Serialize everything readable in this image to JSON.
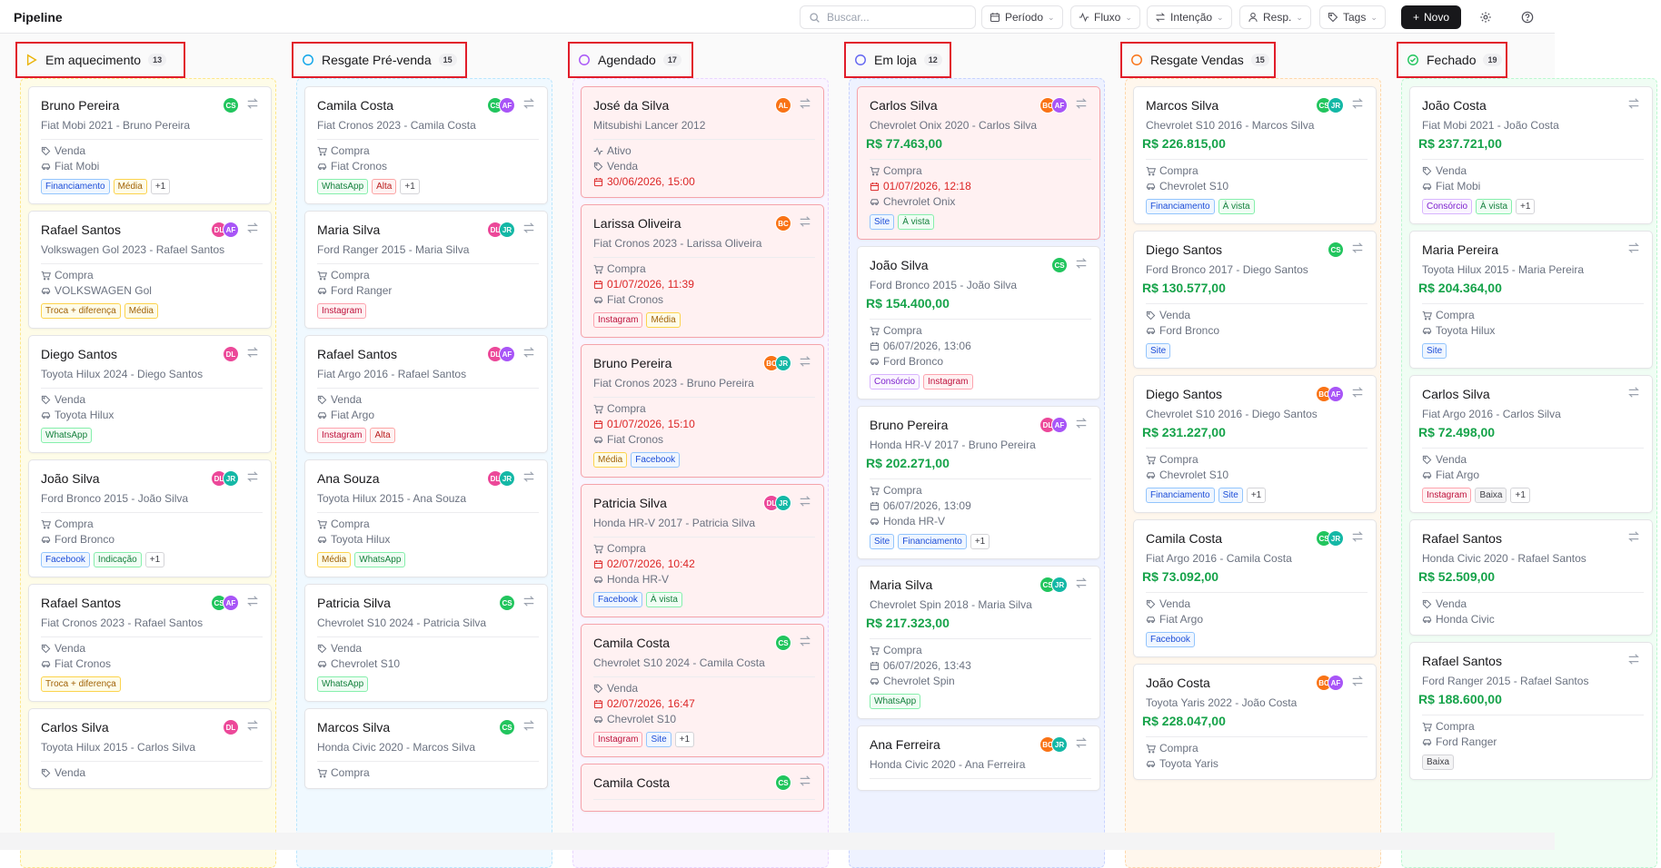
{
  "app": {
    "title": "Pipeline"
  },
  "toolbar": {
    "search_placeholder": "Buscar...",
    "periodo": "Período",
    "fluxo": "Fluxo",
    "intencao": "Intenção",
    "resp": "Resp.",
    "tags": "Tags",
    "novo": "Novo"
  },
  "colors": {
    "accent": "#18181b",
    "price": "#16a34a",
    "highlight": "#e11d2a"
  },
  "columns": [
    {
      "title": "Em aquecimento",
      "count": "13",
      "icon": "triangle-play-icon",
      "color": "#eab308",
      "bg": "#fefce8",
      "border": "#fde68a",
      "cards": [
        {
          "name": "Bruno Pereira",
          "subtitle": "Fiat Mobi 2021 - Bruno Pereira",
          "avatars": [
            "CS"
          ],
          "lines": [
            {
              "icon": "tag",
              "text": "Venda"
            },
            {
              "icon": "car",
              "text": "Fiat Mobi"
            }
          ],
          "tags": [
            "Financiamento",
            "Média",
            "+1"
          ]
        },
        {
          "name": "Rafael Santos",
          "subtitle": "Volkswagen Gol 2023 - Rafael Santos",
          "avatars": [
            "DL",
            "AF"
          ],
          "lines": [
            {
              "icon": "cart",
              "text": "Compra"
            },
            {
              "icon": "car",
              "text": "VOLKSWAGEN Gol"
            }
          ],
          "tags": [
            "Troca + diferença",
            "Média"
          ]
        },
        {
          "name": "Diego Santos",
          "subtitle": "Toyota Hilux 2024 - Diego Santos",
          "avatars": [
            "DL"
          ],
          "lines": [
            {
              "icon": "tag",
              "text": "Venda"
            },
            {
              "icon": "car",
              "text": "Toyota Hilux"
            }
          ],
          "tags": [
            "WhatsApp"
          ]
        },
        {
          "name": "João Silva",
          "subtitle": "Ford Bronco 2015 - João Silva",
          "avatars": [
            "DL",
            "JR"
          ],
          "lines": [
            {
              "icon": "cart",
              "text": "Compra"
            },
            {
              "icon": "car",
              "text": "Ford Bronco"
            }
          ],
          "tags": [
            "Facebook",
            "Indicação",
            "+1"
          ]
        },
        {
          "name": "Rafael Santos",
          "subtitle": "Fiat Cronos 2023 - Rafael Santos",
          "avatars": [
            "CS",
            "AF"
          ],
          "lines": [
            {
              "icon": "tag",
              "text": "Venda"
            },
            {
              "icon": "car",
              "text": "Fiat Cronos"
            }
          ],
          "tags": [
            "Troca + diferença"
          ]
        },
        {
          "name": "Carlos Silva",
          "subtitle": "Toyota Hilux 2015 - Carlos Silva",
          "avatars": [
            "DL"
          ],
          "lines": [
            {
              "icon": "tag",
              "text": "Venda"
            }
          ],
          "tags": []
        }
      ]
    },
    {
      "title": "Resgate Pré-venda",
      "count": "15",
      "icon": "circle-icon",
      "color": "#0ea5e9",
      "bg": "#f0f9ff",
      "border": "#bae6fd",
      "cards": [
        {
          "name": "Camila Costa",
          "subtitle": "Fiat Cronos 2023 - Camila Costa",
          "avatars": [
            "CS",
            "AF"
          ],
          "lines": [
            {
              "icon": "cart",
              "text": "Compra"
            },
            {
              "icon": "car",
              "text": "Fiat Cronos"
            }
          ],
          "tags": [
            "WhatsApp",
            "Alta",
            "+1"
          ]
        },
        {
          "name": "Maria Silva",
          "subtitle": "Ford Ranger 2015 - Maria Silva",
          "avatars": [
            "DL",
            "JR"
          ],
          "lines": [
            {
              "icon": "cart",
              "text": "Compra"
            },
            {
              "icon": "car",
              "text": "Ford Ranger"
            }
          ],
          "tags": [
            "Instagram"
          ]
        },
        {
          "name": "Rafael Santos",
          "subtitle": "Fiat Argo 2016 - Rafael Santos",
          "avatars": [
            "DL",
            "AF"
          ],
          "lines": [
            {
              "icon": "tag",
              "text": "Venda"
            },
            {
              "icon": "car",
              "text": "Fiat Argo"
            }
          ],
          "tags": [
            "Instagram",
            "Alta"
          ]
        },
        {
          "name": "Ana Souza",
          "subtitle": "Toyota Hilux 2015 - Ana Souza",
          "avatars": [
            "DL",
            "JR"
          ],
          "lines": [
            {
              "icon": "cart",
              "text": "Compra"
            },
            {
              "icon": "car",
              "text": "Toyota Hilux"
            }
          ],
          "tags": [
            "Média",
            "WhatsApp"
          ]
        },
        {
          "name": "Patricia Silva",
          "subtitle": "Chevrolet S10 2024 - Patricia Silva",
          "avatars": [
            "CS"
          ],
          "lines": [
            {
              "icon": "tag",
              "text": "Venda"
            },
            {
              "icon": "car",
              "text": "Chevrolet S10"
            }
          ],
          "tags": [
            "WhatsApp"
          ]
        },
        {
          "name": "Marcos Silva",
          "subtitle": "Honda Civic 2020 - Marcos Silva",
          "avatars": [
            "CS"
          ],
          "lines": [
            {
              "icon": "cart",
              "text": "Compra"
            }
          ],
          "tags": []
        }
      ]
    },
    {
      "title": "Agendado",
      "count": "17",
      "icon": "circle-icon",
      "color": "#a855f7",
      "bg": "#faf5ff",
      "border": "#e9d5ff",
      "cards": [
        {
          "name": "José da Silva",
          "subtitle": "Mitsubishi Lancer 2012",
          "avatars": [
            "AL"
          ],
          "alert": true,
          "lines": [
            {
              "icon": "activity",
              "text": "Ativo"
            },
            {
              "icon": "tag",
              "text": "Venda"
            },
            {
              "icon": "calendar",
              "text": "30/06/2026, 15:00",
              "red": true
            }
          ],
          "tags": []
        },
        {
          "name": "Larissa Oliveira",
          "subtitle": "Fiat Cronos 2023 - Larissa Oliveira",
          "avatars": [
            "BC"
          ],
          "alert": true,
          "lines": [
            {
              "icon": "cart",
              "text": "Compra"
            },
            {
              "icon": "calendar",
              "text": "01/07/2026, 11:39",
              "red": true
            },
            {
              "icon": "car",
              "text": "Fiat Cronos"
            }
          ],
          "tags": [
            "Instagram",
            "Média"
          ]
        },
        {
          "name": "Bruno Pereira",
          "subtitle": "Fiat Cronos 2023 - Bruno Pereira",
          "avatars": [
            "BC",
            "JR"
          ],
          "alert": true,
          "lines": [
            {
              "icon": "cart",
              "text": "Compra"
            },
            {
              "icon": "calendar",
              "text": "01/07/2026, 15:10",
              "red": true
            },
            {
              "icon": "car",
              "text": "Fiat Cronos"
            }
          ],
          "tags": [
            "Média",
            "Facebook"
          ]
        },
        {
          "name": "Patricia Silva",
          "subtitle": "Honda HR-V 2017 - Patricia Silva",
          "avatars": [
            "DL",
            "JR"
          ],
          "alert": true,
          "lines": [
            {
              "icon": "cart",
              "text": "Compra"
            },
            {
              "icon": "calendar",
              "text": "02/07/2026, 10:42",
              "red": true
            },
            {
              "icon": "car",
              "text": "Honda HR-V"
            }
          ],
          "tags": [
            "Facebook",
            "À vista"
          ]
        },
        {
          "name": "Camila Costa",
          "subtitle": "Chevrolet S10 2024 - Camila Costa",
          "avatars": [
            "CS"
          ],
          "alert": true,
          "lines": [
            {
              "icon": "tag",
              "text": "Venda"
            },
            {
              "icon": "calendar",
              "text": "02/07/2026, 16:47",
              "red": true
            },
            {
              "icon": "car",
              "text": "Chevrolet S10"
            }
          ],
          "tags": [
            "Instagram",
            "Site",
            "+1"
          ]
        },
        {
          "name": "Camila Costa",
          "subtitle": "",
          "avatars": [
            "CS"
          ],
          "alert": true,
          "lines": [],
          "tags": []
        }
      ]
    },
    {
      "title": "Em loja",
      "count": "12",
      "icon": "circle-icon",
      "color": "#6366f1",
      "bg": "#eef2ff",
      "border": "#c7d2fe",
      "cards": [
        {
          "name": "Carlos Silva",
          "subtitle": "Chevrolet Onix 2020 - Carlos Silva",
          "price": "R$ 77.463,00",
          "avatars": [
            "BC",
            "AF"
          ],
          "alert": true,
          "lines": [
            {
              "icon": "cart",
              "text": "Compra"
            },
            {
              "icon": "calendar",
              "text": "01/07/2026, 12:18",
              "red": true
            },
            {
              "icon": "car",
              "text": "Chevrolet Onix"
            }
          ],
          "tags": [
            "Site",
            "À vista"
          ]
        },
        {
          "name": "João Silva",
          "subtitle": "Ford Bronco 2015 - João Silva",
          "price": "R$ 154.400,00",
          "avatars": [
            "CS"
          ],
          "lines": [
            {
              "icon": "cart",
              "text": "Compra"
            },
            {
              "icon": "calendar",
              "text": "06/07/2026, 13:06"
            },
            {
              "icon": "car",
              "text": "Ford Bronco"
            }
          ],
          "tags": [
            "Consórcio",
            "Instagram"
          ]
        },
        {
          "name": "Bruno Pereira",
          "subtitle": "Honda HR-V 2017 - Bruno Pereira",
          "price": "R$ 202.271,00",
          "avatars": [
            "DL",
            "AF"
          ],
          "lines": [
            {
              "icon": "cart",
              "text": "Compra"
            },
            {
              "icon": "calendar",
              "text": "06/07/2026, 13:09"
            },
            {
              "icon": "car",
              "text": "Honda HR-V"
            }
          ],
          "tags": [
            "Site",
            "Financiamento",
            "+1"
          ]
        },
        {
          "name": "Maria Silva",
          "subtitle": "Chevrolet Spin 2018 - Maria Silva",
          "price": "R$ 217.323,00",
          "avatars": [
            "CS",
            "JR"
          ],
          "lines": [
            {
              "icon": "cart",
              "text": "Compra"
            },
            {
              "icon": "calendar",
              "text": "06/07/2026, 13:43"
            },
            {
              "icon": "car",
              "text": "Chevrolet Spin"
            }
          ],
          "tags": [
            "WhatsApp"
          ]
        },
        {
          "name": "Ana Ferreira",
          "subtitle": "Honda Civic 2020 - Ana Ferreira",
          "avatars": [
            "BC",
            "JR"
          ],
          "lines": [],
          "tags": []
        }
      ]
    },
    {
      "title": "Resgate Vendas",
      "count": "15",
      "icon": "circle-icon",
      "color": "#f97316",
      "bg": "#fff7ed",
      "border": "#fed7aa",
      "cards": [
        {
          "name": "Marcos Silva",
          "subtitle": "Chevrolet S10 2016 - Marcos Silva",
          "price": "R$ 226.815,00",
          "avatars": [
            "CS",
            "JR"
          ],
          "lines": [
            {
              "icon": "cart",
              "text": "Compra"
            },
            {
              "icon": "car",
              "text": "Chevrolet S10"
            }
          ],
          "tags": [
            "Financiamento",
            "À vista"
          ]
        },
        {
          "name": "Diego Santos",
          "subtitle": "Ford Bronco 2017 - Diego Santos",
          "price": "R$ 130.577,00",
          "avatars": [
            "CS"
          ],
          "lines": [
            {
              "icon": "tag",
              "text": "Venda"
            },
            {
              "icon": "car",
              "text": "Ford Bronco"
            }
          ],
          "tags": [
            "Site"
          ]
        },
        {
          "name": "Diego Santos",
          "subtitle": "Chevrolet S10 2016 - Diego Santos",
          "price": "R$ 231.227,00",
          "avatars": [
            "BC",
            "AF"
          ],
          "lines": [
            {
              "icon": "cart",
              "text": "Compra"
            },
            {
              "icon": "car",
              "text": "Chevrolet S10"
            }
          ],
          "tags": [
            "Financiamento",
            "Site",
            "+1"
          ]
        },
        {
          "name": "Camila Costa",
          "subtitle": "Fiat Argo 2016 - Camila Costa",
          "price": "R$ 73.092,00",
          "avatars": [
            "CS",
            "JR"
          ],
          "lines": [
            {
              "icon": "tag",
              "text": "Venda"
            },
            {
              "icon": "car",
              "text": "Fiat Argo"
            }
          ],
          "tags": [
            "Facebook"
          ]
        },
        {
          "name": "João Costa",
          "subtitle": "Toyota Yaris 2022 - João Costa",
          "price": "R$ 228.047,00",
          "avatars": [
            "BC",
            "AF"
          ],
          "lines": [
            {
              "icon": "cart",
              "text": "Compra"
            },
            {
              "icon": "car",
              "text": "Toyota Yaris"
            }
          ],
          "tags": []
        }
      ]
    },
    {
      "title": "Fechado",
      "count": "19",
      "icon": "check-circle-icon",
      "color": "#22c55e",
      "bg": "#f0fdf4",
      "border": "#bbf7d0",
      "cards": [
        {
          "name": "João Costa",
          "subtitle": "Fiat Mobi 2021 - João Costa",
          "price": "R$ 237.721,00",
          "avatars": [],
          "lines": [
            {
              "icon": "tag",
              "text": "Venda"
            },
            {
              "icon": "car",
              "text": "Fiat Mobi"
            }
          ],
          "tags": [
            "Consórcio",
            "À vista",
            "+1"
          ]
        },
        {
          "name": "Maria Pereira",
          "subtitle": "Toyota Hilux 2015 - Maria Pereira",
          "price": "R$ 204.364,00",
          "avatars": [],
          "lines": [
            {
              "icon": "cart",
              "text": "Compra"
            },
            {
              "icon": "car",
              "text": "Toyota Hilux"
            }
          ],
          "tags": [
            "Site"
          ]
        },
        {
          "name": "Carlos Silva",
          "subtitle": "Fiat Argo 2016 - Carlos Silva",
          "price": "R$ 72.498,00",
          "avatars": [],
          "lines": [
            {
              "icon": "tag",
              "text": "Venda"
            },
            {
              "icon": "car",
              "text": "Fiat Argo"
            }
          ],
          "tags": [
            "Instagram",
            "Baixa",
            "+1"
          ]
        },
        {
          "name": "Rafael Santos",
          "subtitle": "Honda Civic 2020 - Rafael Santos",
          "price": "R$ 52.509,00",
          "avatars": [],
          "lines": [
            {
              "icon": "tag",
              "text": "Venda"
            },
            {
              "icon": "car",
              "text": "Honda Civic"
            }
          ],
          "tags": []
        },
        {
          "name": "Rafael Santos",
          "subtitle": "Ford Ranger 2015 - Rafael Santos",
          "price": "R$ 188.600,00",
          "avatars": [],
          "lines": [
            {
              "icon": "cart",
              "text": "Compra"
            },
            {
              "icon": "car",
              "text": "Ford Ranger"
            }
          ],
          "tags": [
            "Baixa"
          ]
        }
      ]
    }
  ]
}
